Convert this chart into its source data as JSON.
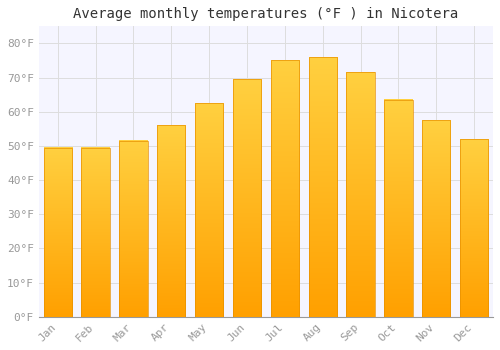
{
  "title": "Average monthly temperatures (°F ) in Nicotera",
  "months": [
    "Jan",
    "Feb",
    "Mar",
    "Apr",
    "May",
    "Jun",
    "Jul",
    "Aug",
    "Sep",
    "Oct",
    "Nov",
    "Dec"
  ],
  "values": [
    49.5,
    49.5,
    51.5,
    56.0,
    62.5,
    69.5,
    75.0,
    76.0,
    71.5,
    63.5,
    57.5,
    52.0
  ],
  "bar_color_top": "#FFD700",
  "bar_color_bottom": "#FFA500",
  "bar_color_edge": "#E89000",
  "background_color": "#ffffff",
  "plot_bg_color": "#f5f5ff",
  "grid_color": "#dddddd",
  "ytick_labels": [
    "0°F",
    "10°F",
    "20°F",
    "30°F",
    "40°F",
    "50°F",
    "60°F",
    "70°F",
    "80°F"
  ],
  "ytick_values": [
    0,
    10,
    20,
    30,
    40,
    50,
    60,
    70,
    80
  ],
  "ylim": [
    0,
    85
  ],
  "title_fontsize": 10,
  "tick_fontsize": 8,
  "tick_color": "#999999",
  "font_family": "monospace"
}
